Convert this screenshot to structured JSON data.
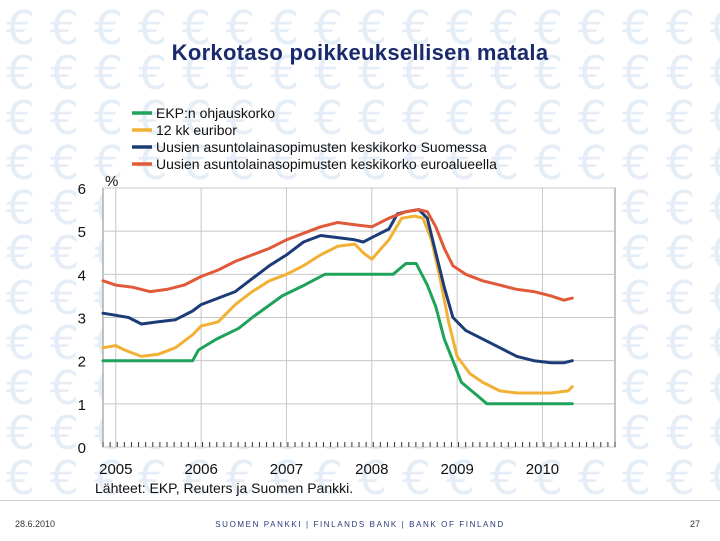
{
  "slide": {
    "title": "Korkotaso poikkeuksellisen matala",
    "source": "Lähteet: EKP, Reuters ja Suomen Pankki.",
    "footer_date": "28.6.2010",
    "footer_bank": "SUOMEN PANKKI | FINLANDS BANK | BANK OF FINLAND",
    "page_number": "27",
    "background_glyph": "€",
    "background_glyph_color": "#cfe0f0"
  },
  "chart_data": {
    "type": "line",
    "ylabel": "%",
    "ylim": [
      0,
      6
    ],
    "yticks": [
      "0",
      "1",
      "2",
      "3",
      "4",
      "5",
      "6"
    ],
    "xlim": [
      2004.85,
      2010.85
    ],
    "xticks": [
      {
        "label": "2005",
        "value": 2005
      },
      {
        "label": "2006",
        "value": 2006
      },
      {
        "label": "2007",
        "value": 2007
      },
      {
        "label": "2008",
        "value": 2008
      },
      {
        "label": "2009",
        "value": 2009
      },
      {
        "label": "2010",
        "value": 2010
      }
    ],
    "grid": true,
    "legend_position": "top",
    "series": [
      {
        "name": "EKP:n ohjauskorko",
        "color": "#1fa25a",
        "x": [
          2004.85,
          2005.9,
          2005.97,
          2006.18,
          2006.44,
          2006.6,
          2006.95,
          2007.21,
          2007.45,
          2008.25,
          2008.4,
          2008.52,
          2008.65,
          2008.75,
          2008.85,
          2008.95,
          2009.05,
          2009.2,
          2009.35,
          2010.35
        ],
        "values": [
          2.0,
          2.0,
          2.25,
          2.5,
          2.75,
          3.0,
          3.5,
          3.75,
          4.0,
          4.0,
          4.25,
          4.25,
          3.75,
          3.25,
          2.5,
          2.0,
          1.5,
          1.25,
          1.0,
          1.0
        ]
      },
      {
        "name": "12 kk euribor",
        "color": "#f2b134",
        "x": [
          2004.85,
          2005.0,
          2005.1,
          2005.3,
          2005.5,
          2005.7,
          2005.9,
          2006.0,
          2006.2,
          2006.4,
          2006.6,
          2006.8,
          2007.0,
          2007.2,
          2007.4,
          2007.6,
          2007.8,
          2007.9,
          2008.0,
          2008.2,
          2008.35,
          2008.5,
          2008.6,
          2008.7,
          2008.8,
          2008.9,
          2009.0,
          2009.15,
          2009.3,
          2009.5,
          2009.7,
          2009.9,
          2010.1,
          2010.3,
          2010.35
        ],
        "values": [
          2.3,
          2.35,
          2.25,
          2.1,
          2.15,
          2.3,
          2.6,
          2.8,
          2.9,
          3.3,
          3.6,
          3.85,
          4.0,
          4.2,
          4.45,
          4.65,
          4.7,
          4.5,
          4.35,
          4.8,
          5.3,
          5.35,
          5.3,
          4.8,
          3.9,
          2.9,
          2.1,
          1.7,
          1.5,
          1.3,
          1.25,
          1.25,
          1.25,
          1.3,
          1.4
        ]
      },
      {
        "name": "Uusien asuntolainasopimusten keskikorko Suomessa",
        "color": "#1c3c78",
        "x": [
          2004.85,
          2005.0,
          2005.15,
          2005.3,
          2005.5,
          2005.7,
          2005.9,
          2006.0,
          2006.2,
          2006.4,
          2006.6,
          2006.8,
          2007.0,
          2007.2,
          2007.4,
          2007.6,
          2007.8,
          2007.9,
          2008.0,
          2008.2,
          2008.3,
          2008.4,
          2008.55,
          2008.65,
          2008.75,
          2008.85,
          2008.95,
          2009.1,
          2009.3,
          2009.5,
          2009.7,
          2009.9,
          2010.1,
          2010.25,
          2010.35
        ],
        "values": [
          3.1,
          3.05,
          3.0,
          2.85,
          2.9,
          2.95,
          3.15,
          3.3,
          3.45,
          3.6,
          3.9,
          4.2,
          4.45,
          4.75,
          4.9,
          4.85,
          4.8,
          4.75,
          4.85,
          5.05,
          5.4,
          5.45,
          5.5,
          5.3,
          4.5,
          3.7,
          3.0,
          2.7,
          2.5,
          2.3,
          2.1,
          2.0,
          1.95,
          1.95,
          2.0
        ]
      },
      {
        "name": "Uusien asuntolainasopimusten keskikorko euroalueella",
        "color": "#e05a3a",
        "x": [
          2004.85,
          2005.0,
          2005.2,
          2005.4,
          2005.6,
          2005.8,
          2006.0,
          2006.2,
          2006.4,
          2006.6,
          2006.8,
          2007.0,
          2007.2,
          2007.4,
          2007.6,
          2007.8,
          2008.0,
          2008.2,
          2008.4,
          2008.55,
          2008.65,
          2008.75,
          2008.85,
          2008.95,
          2009.1,
          2009.3,
          2009.5,
          2009.7,
          2009.9,
          2010.1,
          2010.25,
          2010.35
        ],
        "values": [
          3.85,
          3.75,
          3.7,
          3.6,
          3.65,
          3.75,
          3.95,
          4.1,
          4.3,
          4.45,
          4.6,
          4.8,
          4.95,
          5.1,
          5.2,
          5.15,
          5.1,
          5.3,
          5.45,
          5.5,
          5.45,
          5.1,
          4.6,
          4.2,
          4.0,
          3.85,
          3.75,
          3.65,
          3.6,
          3.5,
          3.4,
          3.45
        ]
      }
    ]
  }
}
